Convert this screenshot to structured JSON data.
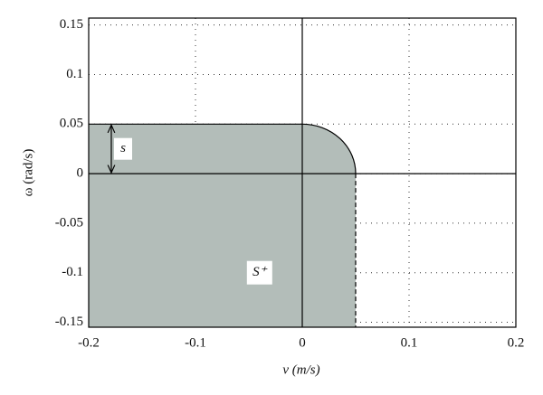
{
  "chart_data": {
    "type": "region",
    "xlabel": "v (m/s)",
    "ylabel": "ω (rad/s)",
    "xlim": [
      -0.2,
      0.2
    ],
    "xticks": [
      -0.2,
      -0.1,
      0,
      0.1,
      0.2
    ],
    "ylim": [
      -0.155,
      0.157
    ],
    "yticks": [
      -0.15,
      -0.1,
      -0.05,
      0,
      0.05,
      0.1,
      0.15
    ],
    "grid": true,
    "color": "#b3bdb9",
    "region": {
      "v_max": 0.05,
      "omega_max": 0.05
    },
    "annotations": {
      "height_label": "s",
      "region_label": "S⁺"
    }
  }
}
